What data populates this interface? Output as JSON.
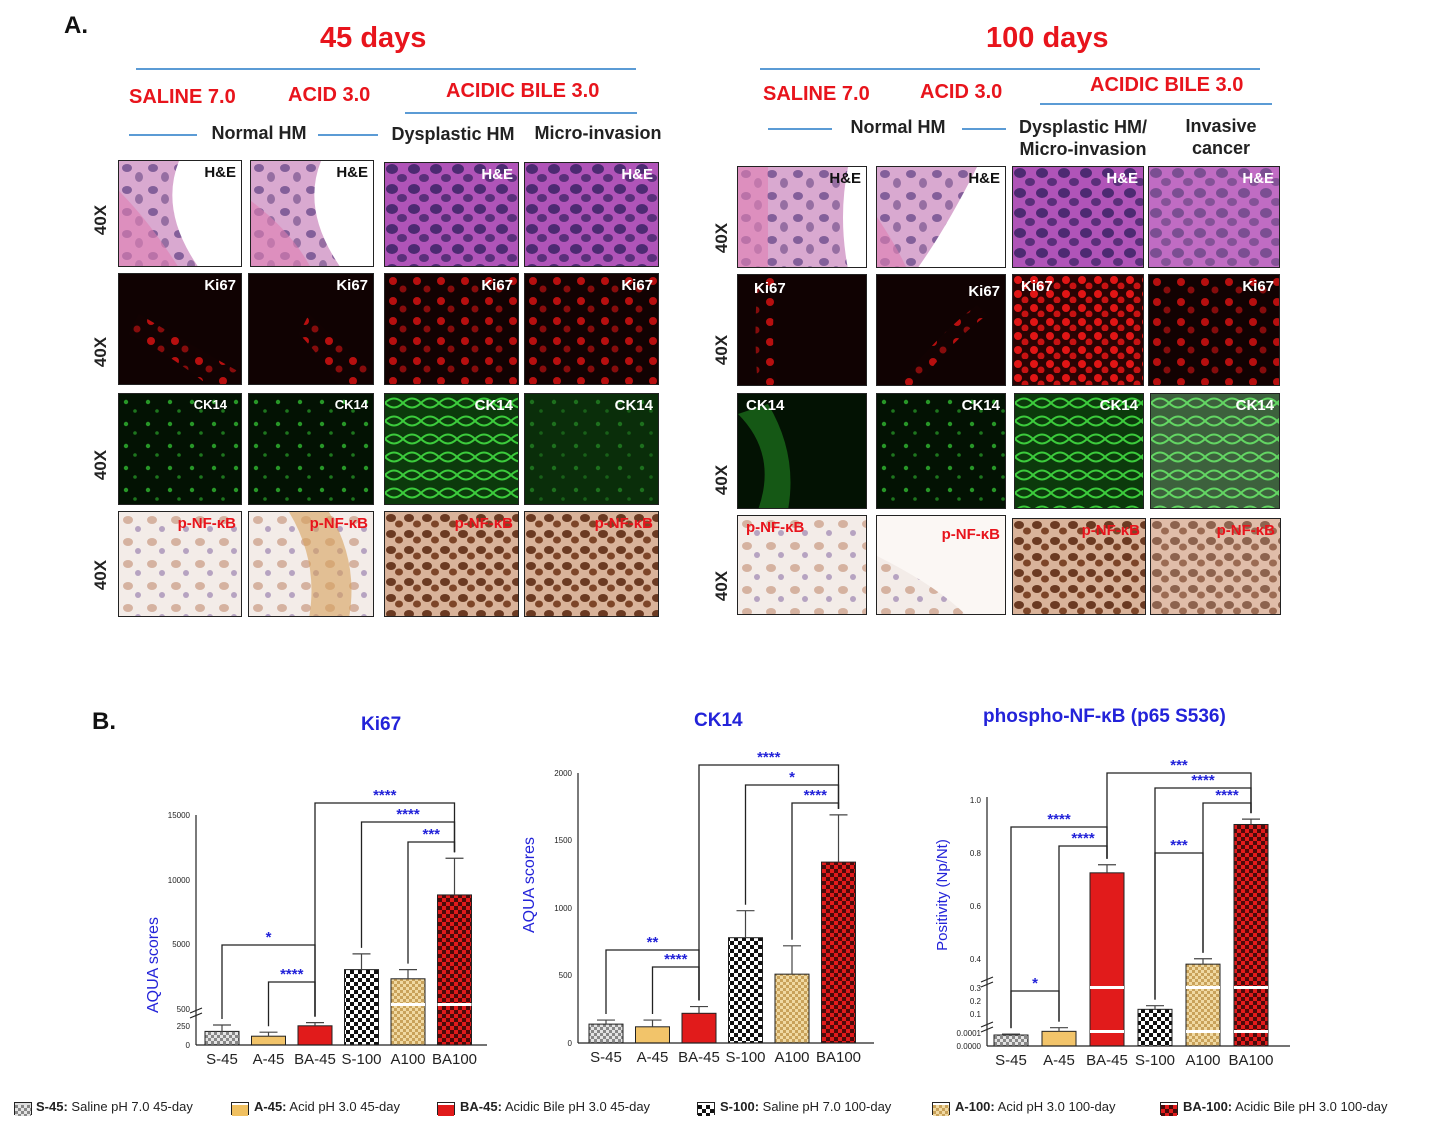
{
  "panel_a": {
    "letter": "A.",
    "day45": {
      "title": "45 days",
      "groups": [
        "SALINE 7.0",
        "ACID 3.0",
        "ACIDIC BILE 3.0"
      ],
      "columns": [
        "Normal HM",
        "Dysplastic HM",
        "Micro-invasion"
      ]
    },
    "day100": {
      "title": "100 days",
      "groups": [
        "SALINE 7.0",
        "ACID 3.0",
        "ACIDIC BILE 3.0"
      ],
      "columns": [
        "Normal HM",
        "Dysplastic HM/\nMicro-invasion",
        "Invasive\ncancer"
      ]
    },
    "magnification": "40X",
    "stains": [
      "H&E",
      "Ki67",
      "CK14",
      "p-NF-κB"
    ]
  },
  "panel_b": {
    "letter": "B.",
    "legend": [
      {
        "code": "S-45:",
        "text": "Saline pH 7.0 45-day",
        "style": "grey-check"
      },
      {
        "code": "A-45:",
        "text": "Acid pH 3.0 45-day",
        "style": "tan"
      },
      {
        "code": "BA-45:",
        "text": "Acidic Bile pH 3.0 45-day",
        "style": "red"
      },
      {
        "code": "S-100:",
        "text": "Saline pH 7.0 100-day",
        "style": "black-check"
      },
      {
        "code": "A-100:",
        "text": "Acid pH 3.0 100-day",
        "style": "tan-check"
      },
      {
        "code": "BA-100:",
        "text": "Acidic Bile pH 3.0 100-day",
        "style": "red-check"
      }
    ]
  },
  "chart_data": [
    {
      "type": "bar",
      "title": "Ki67",
      "ylabel": "AQUA scores",
      "categories": [
        "S-45",
        "A-45",
        "BA-45",
        "S-100",
        "A100",
        "BA100"
      ],
      "values": [
        170,
        110,
        240,
        3200,
        2500,
        8900
      ],
      "errors": [
        80,
        50,
        40,
        1200,
        700,
        2800
      ],
      "yticks": [
        "0",
        "250",
        "500",
        "5000",
        "10000",
        "15000"
      ],
      "brackets": [
        {
          "from": 0,
          "to": 2,
          "label": "*"
        },
        {
          "from": 1,
          "to": 2,
          "label": "****"
        },
        {
          "from": 2,
          "to": 5,
          "label": "****"
        },
        {
          "from": 3,
          "to": 5,
          "label": "****"
        },
        {
          "from": 4,
          "to": 5,
          "label": "***"
        }
      ]
    },
    {
      "type": "bar",
      "title": "CK14",
      "ylabel": "AQUA scores",
      "categories": [
        "S-45",
        "A-45",
        "BA-45",
        "S-100",
        "A100",
        "BA100"
      ],
      "values": [
        140,
        120,
        220,
        780,
        510,
        1340
      ],
      "errors": [
        30,
        50,
        50,
        200,
        210,
        350
      ],
      "ylim": [
        0,
        2000
      ],
      "yticks": [
        "0",
        "500",
        "1000",
        "1500",
        "2000"
      ],
      "brackets": [
        {
          "from": 0,
          "to": 2,
          "label": "**"
        },
        {
          "from": 1,
          "to": 2,
          "label": "****"
        },
        {
          "from": 2,
          "to": 5,
          "label": "****"
        },
        {
          "from": 3,
          "to": 5,
          "label": "*"
        },
        {
          "from": 4,
          "to": 5,
          "label": "****"
        }
      ]
    },
    {
      "type": "bar",
      "title": "phospho-NF-κB (p65 S536)",
      "ylabel": "Positivity (Np/Nt)",
      "categories": [
        "S-45",
        "A-45",
        "BA-45",
        "S-100",
        "A100",
        "BA100"
      ],
      "values": [
        0.06,
        0.08,
        0.74,
        0.2,
        0.4,
        0.92
      ],
      "errors": [
        0.005,
        0.02,
        0.03,
        0.02,
        0.02,
        0.02
      ],
      "yticks": [
        "0.0000",
        "0.0001",
        "0.1",
        "0.2",
        "0.3",
        "0.4",
        "0.6",
        "0.8",
        "1.0"
      ],
      "brackets": [
        {
          "from": 0,
          "to": 1,
          "label": "*"
        },
        {
          "from": 0,
          "to": 2,
          "label": "****"
        },
        {
          "from": 1,
          "to": 2,
          "label": "****"
        },
        {
          "from": 2,
          "to": 5,
          "label": "***"
        },
        {
          "from": 3,
          "to": 5,
          "label": "****"
        },
        {
          "from": 3,
          "to": 4,
          "label": "***"
        },
        {
          "from": 4,
          "to": 5,
          "label": "****"
        }
      ]
    }
  ]
}
